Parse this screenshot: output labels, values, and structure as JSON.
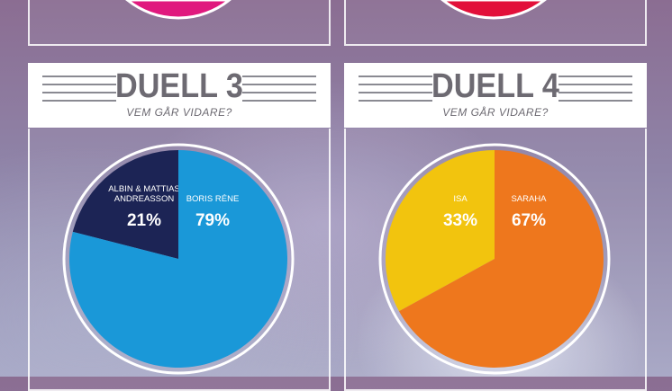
{
  "colors": {
    "top_left": "#e0197e",
    "top_right": "#e2103a",
    "duel3_a": "#1c2455",
    "duel3_b": "#1a98d8",
    "duel4_a": "#f2c40e",
    "duel4_b": "#ee771d"
  },
  "chart_data": [
    {
      "type": "pie",
      "title": "DUELL 3",
      "subtitle": "VEM GÅR VIDARE?",
      "slices": [
        {
          "name": "ALBIN & MATTIAS ANDREASSON",
          "name_lines": [
            "ALBIN & MATTIAS",
            "ANDREASSON"
          ],
          "value": 21,
          "label": "21%",
          "color": "#1c2455"
        },
        {
          "name": "BORIS RÉNE",
          "name_lines": [
            "BORIS RÉNE"
          ],
          "value": 79,
          "label": "79%",
          "color": "#1a98d8"
        }
      ]
    },
    {
      "type": "pie",
      "title": "DUELL 4",
      "subtitle": "VEM GÅR VIDARE?",
      "slices": [
        {
          "name": "ISA",
          "name_lines": [
            "ISA"
          ],
          "value": 33,
          "label": "33%",
          "color": "#f2c40e"
        },
        {
          "name": "SARAHA",
          "name_lines": [
            "SARAHA"
          ],
          "value": 67,
          "label": "67%",
          "color": "#ee771d"
        }
      ]
    }
  ]
}
